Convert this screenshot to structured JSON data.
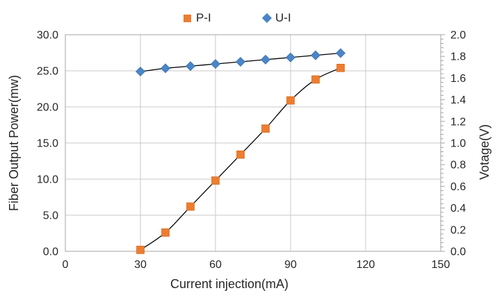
{
  "chart_data": {
    "type": "line",
    "title": "",
    "x": [
      30,
      40,
      50,
      60,
      70,
      80,
      90,
      100,
      110
    ],
    "series": [
      {
        "name": "P-I",
        "axis": "left",
        "marker": "square",
        "marker_color": "#ED7D31",
        "marker_edge": "#D2691E",
        "line_color": "#000000",
        "values": [
          0.2,
          2.6,
          6.2,
          9.8,
          13.4,
          17.0,
          20.9,
          23.8,
          25.4
        ]
      },
      {
        "name": "U-I",
        "axis": "right",
        "marker": "diamond",
        "marker_color": "#4A86C8",
        "marker_edge": "#3A6EA5",
        "line_color": "#000000",
        "values": [
          1.66,
          1.69,
          1.71,
          1.73,
          1.75,
          1.77,
          1.79,
          1.81,
          1.83
        ]
      }
    ],
    "x_axis": {
      "label": "Current injection(mA)",
      "min": 0,
      "max": 150,
      "tick_labels": [
        "0",
        "30",
        "60",
        "90",
        "120",
        "150"
      ]
    },
    "y_axis_left": {
      "label": "Fiber Output Power(mw)",
      "min": 0,
      "max": 30,
      "tick_labels": [
        "0.0",
        "5.0",
        "10.0",
        "15.0",
        "20.0",
        "25.0",
        "30.0"
      ]
    },
    "y_axis_right": {
      "label": "Votage(V)",
      "min": 0,
      "max": 2.0,
      "tick_labels": [
        "0.0",
        "0.2",
        "0.4",
        "0.6",
        "0.8",
        "1.0",
        "1.2",
        "1.4",
        "1.6",
        "1.8",
        "2.0"
      ],
      "minor_tick_step": 0.04
    },
    "grid": true,
    "legend_position": "top"
  },
  "legend": {
    "items": [
      {
        "label": "P-I",
        "marker": "square",
        "color": "#ED7D31"
      },
      {
        "label": "U-I",
        "marker": "diamond",
        "color": "#4A86C8"
      }
    ]
  },
  "colors": {
    "grid": "#C9C9C9",
    "axis_border": "#A3A3A3",
    "text": "#262626",
    "series_line": "#000000",
    "background": "#FFFFFF"
  }
}
